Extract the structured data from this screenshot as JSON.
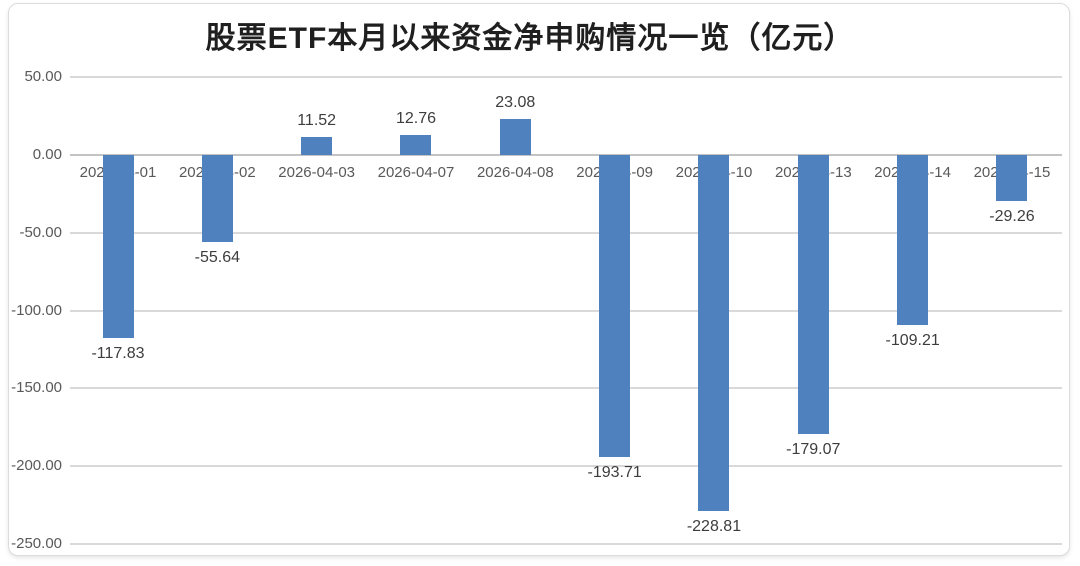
{
  "chart_data": {
    "type": "bar",
    "title": "股票ETF本月以来资金净申购情况一览（亿元）",
    "categories": [
      "2026-04-01",
      "2026-04-02",
      "2026-04-03",
      "2026-04-07",
      "2026-04-08",
      "2026-04-09",
      "2026-04-10",
      "2026-04-13",
      "2026-04-14",
      "2026-04-15"
    ],
    "values": [
      -117.83,
      -55.64,
      11.52,
      12.76,
      23.08,
      -193.71,
      -228.81,
      -179.07,
      -109.21,
      -29.26
    ],
    "data_labels": [
      "-117.83",
      "-55.64",
      "11.52",
      "12.76",
      "23.08",
      "-193.71",
      "-228.81",
      "-179.07",
      "-109.21",
      "-29.26"
    ],
    "xlabel": "",
    "ylabel": "",
    "y_ticks": [
      "50.00",
      "0.00",
      "-50.00",
      "-100.00",
      "-150.00",
      "-200.00",
      "-250.00"
    ],
    "y_tick_values": [
      50,
      0,
      -50,
      -100,
      -150,
      -200,
      -250
    ],
    "ylim": [
      -250,
      50
    ],
    "grid": true,
    "legend": "none",
    "colors": {
      "bar": "#4E81BD",
      "gridline": "#d9d9d9",
      "zero_line": "#c3c3c3",
      "axis_text": "#595959",
      "value_text": "#3d3d3d",
      "title_text": "#1f1f1f"
    }
  }
}
